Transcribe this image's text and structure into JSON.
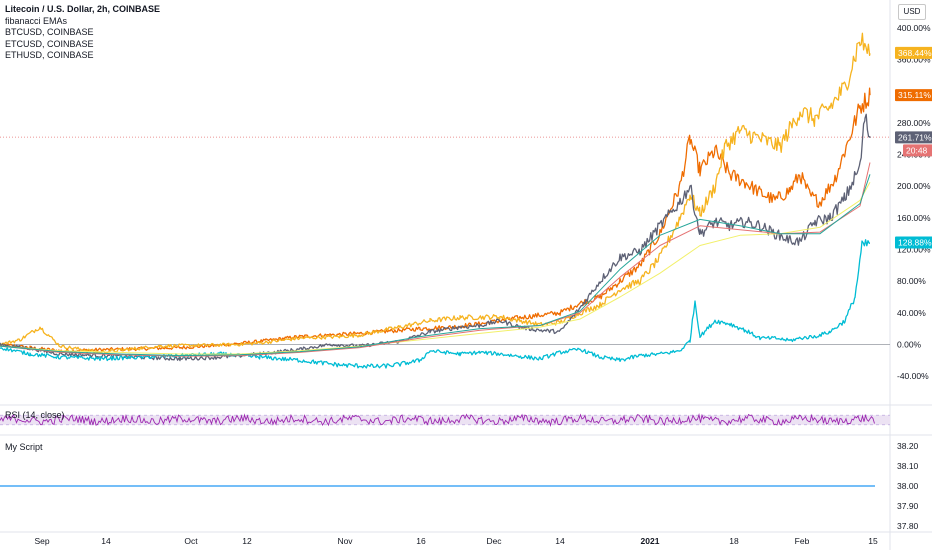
{
  "legend": {
    "title": "Litecoin / U.S. Dollar, 2h, COINBASE",
    "lines": [
      "fibanacci EMAs",
      "BTCUSD, COINBASE",
      "ETCUSD, COINBASE",
      "ETHUSD, COINBASE"
    ]
  },
  "currency_button": "USD",
  "rsi_label": "RSI (14, close)",
  "script_label": "My Script",
  "colors": {
    "ltc": "#5d6175",
    "btc": "#ef6c00",
    "etc": "#00bcd4",
    "eth": "#f6b31f",
    "ema1": "#f2f06a",
    "ema2": "#e57373",
    "ema3": "#26a69a",
    "rsi": "#9c27b0",
    "rsi_band": "#ece2f3",
    "script": "#2196f3",
    "zero": "#9598a1"
  },
  "chart_data": [
    {
      "type": "line",
      "title": "Litecoin / U.S. Dollar, 2h, COINBASE",
      "y_unit": "%",
      "ylim": [
        -55,
        410
      ],
      "y_ticks": [
        "400.00%",
        "360.00%",
        "280.00%",
        "240.00%",
        "200.00%",
        "160.00%",
        "120.00%",
        "80.00%",
        "40.00%",
        "0.00%",
        "-40.00%"
      ],
      "x_ticks": [
        "Sep",
        "14",
        "Oct",
        "12",
        "Nov",
        "16",
        "Dec",
        "14",
        "2021",
        "18",
        "Feb",
        "15"
      ],
      "grid": false,
      "legend_position": "top-left",
      "series": [
        {
          "name": "BTCUSD, COINBASE",
          "color_key": "btc",
          "points": [
            [
              0,
              0
            ],
            [
              30,
              -4
            ],
            [
              60,
              -8
            ],
            [
              120,
              -6
            ],
            [
              180,
              -4
            ],
            [
              220,
              -1
            ],
            [
              260,
              4
            ],
            [
              300,
              10
            ],
            [
              330,
              12
            ],
            [
              360,
              14
            ],
            [
              420,
              20
            ],
            [
              450,
              22
            ],
            [
              480,
              26
            ],
            [
              520,
              34
            ],
            [
              560,
              40
            ],
            [
              580,
              52
            ],
            [
              600,
              60
            ],
            [
              620,
              80
            ],
            [
              640,
              100
            ],
            [
              660,
              140
            ],
            [
              680,
              200
            ],
            [
              690,
              260
            ],
            [
              700,
              220
            ],
            [
              715,
              245
            ],
            [
              730,
              215
            ],
            [
              745,
              205
            ],
            [
              760,
              192
            ],
            [
              775,
              182
            ],
            [
              790,
              195
            ],
            [
              800,
              215
            ],
            [
              810,
              188
            ],
            [
              820,
              180
            ],
            [
              835,
              210
            ],
            [
              845,
              245
            ],
            [
              860,
              300
            ],
            [
              870,
              315
            ]
          ],
          "end_label": "315.11%"
        },
        {
          "name": "ETHUSD, COINBASE",
          "color_key": "eth",
          "points": [
            [
              0,
              0
            ],
            [
              20,
              6
            ],
            [
              40,
              22
            ],
            [
              60,
              -2
            ],
            [
              100,
              -10
            ],
            [
              160,
              -2
            ],
            [
              200,
              -1
            ],
            [
              240,
              0
            ],
            [
              260,
              2
            ],
            [
              300,
              8
            ],
            [
              340,
              10
            ],
            [
              360,
              12
            ],
            [
              400,
              22
            ],
            [
              430,
              30
            ],
            [
              460,
              34
            ],
            [
              500,
              35
            ],
            [
              520,
              30
            ],
            [
              540,
              25
            ],
            [
              560,
              28
            ],
            [
              580,
              40
            ],
            [
              600,
              50
            ],
            [
              620,
              70
            ],
            [
              640,
              80
            ],
            [
              660,
              110
            ],
            [
              680,
              160
            ],
            [
              690,
              190
            ],
            [
              700,
              165
            ],
            [
              715,
              200
            ],
            [
              725,
              250
            ],
            [
              740,
              270
            ],
            [
              760,
              260
            ],
            [
              780,
              250
            ],
            [
              800,
              295
            ],
            [
              815,
              285
            ],
            [
              830,
              300
            ],
            [
              845,
              325
            ],
            [
              860,
              385
            ],
            [
              870,
              368
            ]
          ],
          "end_label": "368.44%"
        },
        {
          "name": "Litecoin / U.S. Dollar, 2h, COINBASE",
          "color_key": "ltc",
          "points": [
            [
              0,
              0
            ],
            [
              30,
              -5
            ],
            [
              60,
              -12
            ],
            [
              120,
              -15
            ],
            [
              180,
              -18
            ],
            [
              220,
              -16
            ],
            [
              260,
              -12
            ],
            [
              300,
              -6
            ],
            [
              330,
              0
            ],
            [
              360,
              -2
            ],
            [
              400,
              4
            ],
            [
              430,
              16
            ],
            [
              460,
              22
            ],
            [
              480,
              24
            ],
            [
              500,
              30
            ],
            [
              520,
              22
            ],
            [
              540,
              18
            ],
            [
              560,
              16
            ],
            [
              580,
              46
            ],
            [
              600,
              80
            ],
            [
              620,
              110
            ],
            [
              640,
              118
            ],
            [
              660,
              150
            ],
            [
              680,
              180
            ],
            [
              690,
              200
            ],
            [
              700,
              140
            ],
            [
              715,
              155
            ],
            [
              730,
              150
            ],
            [
              745,
              155
            ],
            [
              760,
              150
            ],
            [
              775,
              140
            ],
            [
              790,
              132
            ],
            [
              800,
              130
            ],
            [
              815,
              155
            ],
            [
              830,
              160
            ],
            [
              845,
              185
            ],
            [
              860,
              225
            ],
            [
              865,
              288
            ],
            [
              870,
              261
            ]
          ],
          "end_label": "261.71%"
        },
        {
          "name": "ETCUSD, COINBASE",
          "color_key": "etc",
          "points": [
            [
              0,
              -4
            ],
            [
              30,
              -12
            ],
            [
              60,
              -16
            ],
            [
              100,
              -18
            ],
            [
              140,
              -16
            ],
            [
              180,
              -14
            ],
            [
              220,
              -12
            ],
            [
              260,
              -16
            ],
            [
              300,
              -20
            ],
            [
              340,
              -26
            ],
            [
              380,
              -28
            ],
            [
              400,
              -25
            ],
            [
              420,
              -20
            ],
            [
              430,
              -8
            ],
            [
              460,
              -12
            ],
            [
              480,
              -10
            ],
            [
              500,
              -12
            ],
            [
              540,
              -18
            ],
            [
              560,
              -10
            ],
            [
              580,
              -6
            ],
            [
              600,
              -16
            ],
            [
              620,
              -20
            ],
            [
              640,
              -14
            ],
            [
              660,
              -12
            ],
            [
              680,
              -8
            ],
            [
              690,
              5
            ],
            [
              695,
              55
            ],
            [
              700,
              10
            ],
            [
              715,
              30
            ],
            [
              730,
              26
            ],
            [
              745,
              18
            ],
            [
              760,
              8
            ],
            [
              775,
              8
            ],
            [
              790,
              5
            ],
            [
              800,
              8
            ],
            [
              815,
              10
            ],
            [
              830,
              16
            ],
            [
              845,
              30
            ],
            [
              855,
              60
            ],
            [
              862,
              125
            ],
            [
              870,
              128
            ]
          ],
          "end_label": "128.88%"
        },
        {
          "name": "fibanacci EMAs",
          "color_key": "ema1",
          "points": [
            [
              0,
              -2
            ],
            [
              60,
              -8
            ],
            [
              120,
              -10
            ],
            [
              180,
              -12
            ],
            [
              240,
              -12
            ],
            [
              300,
              -8
            ],
            [
              360,
              -2
            ],
            [
              420,
              6
            ],
            [
              480,
              14
            ],
            [
              540,
              22
            ],
            [
              580,
              32
            ],
            [
              620,
              60
            ],
            [
              660,
              90
            ],
            [
              700,
              125
            ],
            [
              740,
              138
            ],
            [
              780,
              140
            ],
            [
              820,
              148
            ],
            [
              860,
              182
            ],
            [
              870,
              205
            ]
          ]
        },
        {
          "name": "fibanacci EMAs",
          "color_key": "ema2",
          "points": [
            [
              0,
              -2
            ],
            [
              60,
              -10
            ],
            [
              120,
              -13
            ],
            [
              180,
              -15
            ],
            [
              240,
              -14
            ],
            [
              300,
              -10
            ],
            [
              360,
              -4
            ],
            [
              420,
              8
            ],
            [
              480,
              18
            ],
            [
              540,
              24
            ],
            [
              580,
              40
            ],
            [
              620,
              85
            ],
            [
              660,
              125
            ],
            [
              700,
              150
            ],
            [
              740,
              145
            ],
            [
              780,
              140
            ],
            [
              820,
              142
            ],
            [
              860,
              175
            ],
            [
              870,
              230
            ]
          ]
        },
        {
          "name": "fibanacci EMAs",
          "color_key": "ema3",
          "points": [
            [
              0,
              -2
            ],
            [
              60,
              -9
            ],
            [
              120,
              -12
            ],
            [
              180,
              -14
            ],
            [
              240,
              -13
            ],
            [
              300,
              -9
            ],
            [
              360,
              -3
            ],
            [
              420,
              10
            ],
            [
              480,
              20
            ],
            [
              540,
              24
            ],
            [
              580,
              42
            ],
            [
              620,
              95
            ],
            [
              660,
              138
            ],
            [
              700,
              158
            ],
            [
              740,
              150
            ],
            [
              780,
              140
            ],
            [
              820,
              140
            ],
            [
              860,
              178
            ],
            [
              870,
              215
            ]
          ]
        }
      ],
      "end_labels_extra": [
        {
          "text": "20:48",
          "color_key": "ema2"
        }
      ],
      "reference_value": 262
    },
    {
      "type": "line",
      "title": "RSI (14, close)",
      "ylim": [
        0,
        100
      ],
      "band": [
        30,
        70
      ],
      "series": [
        {
          "name": "RSI (14, close)",
          "color_key": "rsi",
          "baseline": 50
        }
      ]
    },
    {
      "type": "line",
      "title": "My Script",
      "ylim": [
        37.78,
        38.24
      ],
      "y_ticks": [
        "38.20",
        "38.10",
        "38.00",
        "37.90",
        "37.80"
      ],
      "series": [
        {
          "name": "My Script",
          "color_key": "script",
          "points": [
            [
              0,
              38.0
            ],
            [
              875,
              38.0
            ]
          ]
        }
      ]
    }
  ]
}
